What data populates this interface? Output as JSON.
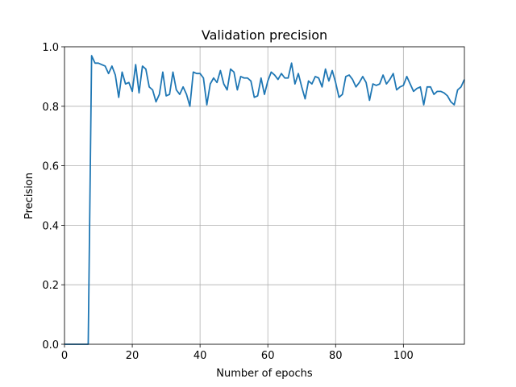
{
  "chart_data": {
    "type": "line",
    "title": "Validation precision",
    "xlabel": "Number of epochs",
    "ylabel": "Precision",
    "xlim": [
      0,
      118
    ],
    "ylim": [
      0.0,
      1.0
    ],
    "x_ticks": [
      "0",
      "20",
      "40",
      "60",
      "80",
      "100"
    ],
    "y_ticks": [
      "0.0",
      "0.2",
      "0.4",
      "0.6",
      "0.8",
      "1.0"
    ],
    "grid": true,
    "line_color": "#1f77b4",
    "series": [
      {
        "values": [
          0.0,
          0.0,
          0.0,
          0.0,
          0.0,
          0.0,
          0.0,
          0.0,
          0.97,
          0.945,
          0.945,
          0.94,
          0.935,
          0.91,
          0.935,
          0.905,
          0.83,
          0.915,
          0.875,
          0.88,
          0.85,
          0.94,
          0.845,
          0.935,
          0.925,
          0.865,
          0.855,
          0.815,
          0.84,
          0.915,
          0.835,
          0.84,
          0.915,
          0.855,
          0.84,
          0.865,
          0.84,
          0.8,
          0.915,
          0.91,
          0.91,
          0.895,
          0.805,
          0.875,
          0.895,
          0.88,
          0.92,
          0.875,
          0.855,
          0.925,
          0.915,
          0.855,
          0.9,
          0.895,
          0.895,
          0.885,
          0.83,
          0.835,
          0.895,
          0.84,
          0.885,
          0.915,
          0.905,
          0.89,
          0.91,
          0.895,
          0.895,
          0.945,
          0.875,
          0.91,
          0.865,
          0.825,
          0.885,
          0.875,
          0.9,
          0.895,
          0.865,
          0.925,
          0.885,
          0.92,
          0.88,
          0.83,
          0.84,
          0.9,
          0.905,
          0.89,
          0.865,
          0.88,
          0.9,
          0.88,
          0.82,
          0.875,
          0.87,
          0.875,
          0.905,
          0.875,
          0.89,
          0.91,
          0.855,
          0.865,
          0.87,
          0.9,
          0.875,
          0.85,
          0.86,
          0.865,
          0.805,
          0.865,
          0.865,
          0.84,
          0.85,
          0.85,
          0.845,
          0.835,
          0.815,
          0.805,
          0.855,
          0.865,
          0.89
        ]
      }
    ]
  }
}
